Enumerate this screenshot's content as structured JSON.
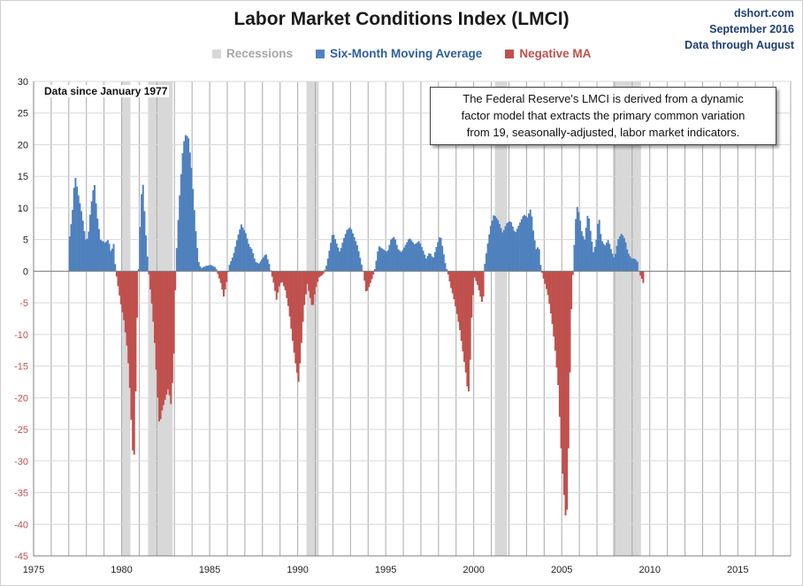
{
  "title": "Labor Market Conditions Index  (LMCI)",
  "source": {
    "site": "dshort.com",
    "date": "September 2016",
    "through": "Data through August"
  },
  "legend": {
    "recessions": "Recessions",
    "moving_average": "Six-Month Moving Average",
    "negative": "Negative MA"
  },
  "colors": {
    "recession": "#d8d8d8",
    "positive": "#4f81bd",
    "negative": "#c0504d",
    "legend_recession_text": "#a6a6a6",
    "legend_ma_text": "#2f5f9e",
    "legend_neg_text": "#c0504d"
  },
  "annotations": {
    "data_since": "Data since January 1977",
    "note_line1": "The Federal Reserve's LMCI is derived from a dynamic",
    "note_line2": "factor model that extracts the primary common variation",
    "note_line3": "from 19, seasonally-adjusted, labor market indicators."
  },
  "chart_data": {
    "type": "bar",
    "title": "Labor Market Conditions Index  (LMCI)",
    "series_name": "Six-Month Moving Average",
    "xlim": [
      1975,
      2018
    ],
    "ylim": [
      -45,
      30
    ],
    "yticks": [
      30,
      25,
      20,
      15,
      10,
      5,
      0,
      -5,
      -10,
      -15,
      -20,
      -25,
      -30,
      -35,
      -40,
      -45
    ],
    "xticks": [
      1975,
      1980,
      1985,
      1990,
      1995,
      2000,
      2005,
      2010,
      2015
    ],
    "recessions": [
      [
        1980.0,
        1980.5
      ],
      [
        1981.5,
        1982.9
      ],
      [
        1990.5,
        1991.2
      ],
      [
        2001.2,
        2001.9
      ],
      [
        2007.9,
        2009.5
      ]
    ],
    "keypoints": [
      [
        1977.0,
        5.5
      ],
      [
        1977.15,
        9
      ],
      [
        1977.3,
        15.3
      ],
      [
        1977.5,
        12
      ],
      [
        1977.7,
        9
      ],
      [
        1977.9,
        5
      ],
      [
        1978.05,
        5.2
      ],
      [
        1978.2,
        10
      ],
      [
        1978.4,
        14.2
      ],
      [
        1978.55,
        9
      ],
      [
        1978.75,
        5
      ],
      [
        1979.0,
        4.5
      ],
      [
        1979.2,
        5
      ],
      [
        1979.35,
        3
      ],
      [
        1979.5,
        4.3
      ],
      [
        1979.6,
        0.5
      ],
      [
        1979.7,
        -1.5
      ],
      [
        1979.9,
        -5
      ],
      [
        1980.1,
        -8
      ],
      [
        1980.3,
        -13
      ],
      [
        1980.45,
        -20
      ],
      [
        1980.55,
        -27
      ],
      [
        1980.65,
        -31
      ],
      [
        1980.75,
        -19
      ],
      [
        1980.85,
        -5
      ],
      [
        1980.95,
        3
      ],
      [
        1981.05,
        11
      ],
      [
        1981.15,
        14.5
      ],
      [
        1981.3,
        7
      ],
      [
        1981.45,
        1
      ],
      [
        1981.55,
        -2
      ],
      [
        1981.7,
        -6
      ],
      [
        1981.85,
        -12
      ],
      [
        1982.0,
        -20
      ],
      [
        1982.1,
        -24.5
      ],
      [
        1982.25,
        -22
      ],
      [
        1982.45,
        -20
      ],
      [
        1982.6,
        -18.5
      ],
      [
        1982.75,
        -21
      ],
      [
        1982.9,
        -15
      ],
      [
        1983.0,
        -3
      ],
      [
        1983.1,
        5
      ],
      [
        1983.25,
        12
      ],
      [
        1983.45,
        20
      ],
      [
        1983.6,
        21.7
      ],
      [
        1983.75,
        21
      ],
      [
        1983.9,
        17
      ],
      [
        1984.05,
        11
      ],
      [
        1984.2,
        5
      ],
      [
        1984.35,
        1
      ],
      [
        1984.5,
        0.5
      ],
      [
        1984.7,
        0.8
      ],
      [
        1985.0,
        1
      ],
      [
        1985.3,
        0.6
      ],
      [
        1985.4,
        -0.3
      ],
      [
        1985.6,
        -2
      ],
      [
        1985.75,
        -4
      ],
      [
        1985.9,
        -2
      ],
      [
        1986.05,
        0.8
      ],
      [
        1986.3,
        2.5
      ],
      [
        1986.55,
        5.5
      ],
      [
        1986.75,
        7.4
      ],
      [
        1987.0,
        6
      ],
      [
        1987.2,
        4
      ],
      [
        1987.35,
        3.5
      ],
      [
        1987.55,
        1.5
      ],
      [
        1987.75,
        1.2
      ],
      [
        1987.95,
        2
      ],
      [
        1988.15,
        2.8
      ],
      [
        1988.35,
        1
      ],
      [
        1988.45,
        -0.3
      ],
      [
        1988.6,
        -2
      ],
      [
        1988.75,
        -4.5
      ],
      [
        1988.9,
        -2.5
      ],
      [
        1989.05,
        -1.5
      ],
      [
        1989.25,
        -3
      ],
      [
        1989.45,
        -6
      ],
      [
        1989.6,
        -9.5
      ],
      [
        1989.8,
        -14
      ],
      [
        1990.0,
        -17.5
      ],
      [
        1990.1,
        -14
      ],
      [
        1990.3,
        -6
      ],
      [
        1990.5,
        -2
      ],
      [
        1990.65,
        -4
      ],
      [
        1990.8,
        -6
      ],
      [
        1990.95,
        -3
      ],
      [
        1991.15,
        -1
      ],
      [
        1991.4,
        -0.5
      ],
      [
        1991.6,
        1
      ],
      [
        1991.8,
        4
      ],
      [
        1991.95,
        6.2
      ],
      [
        1992.15,
        4.5
      ],
      [
        1992.35,
        3
      ],
      [
        1992.55,
        5
      ],
      [
        1992.75,
        6.5
      ],
      [
        1992.95,
        7
      ],
      [
        1993.15,
        5.5
      ],
      [
        1993.35,
        4
      ],
      [
        1993.55,
        1.5
      ],
      [
        1993.7,
        -0.5
      ],
      [
        1993.85,
        -3.5
      ],
      [
        1994.0,
        -2.5
      ],
      [
        1994.2,
        -1
      ],
      [
        1994.35,
        0.5
      ],
      [
        1994.55,
        4
      ],
      [
        1994.8,
        3.5
      ],
      [
        1995.05,
        3
      ],
      [
        1995.25,
        5
      ],
      [
        1995.45,
        5.5
      ],
      [
        1995.65,
        3.5
      ],
      [
        1995.85,
        3
      ],
      [
        1996.05,
        4
      ],
      [
        1996.3,
        5.3
      ],
      [
        1996.6,
        4.2
      ],
      [
        1996.85,
        4.8
      ],
      [
        1997.05,
        3.5
      ],
      [
        1997.25,
        2
      ],
      [
        1997.45,
        3
      ],
      [
        1997.65,
        2
      ],
      [
        1997.85,
        4
      ],
      [
        1998.05,
        5.8
      ],
      [
        1998.2,
        3.5
      ],
      [
        1998.35,
        1
      ],
      [
        1998.5,
        -0.5
      ],
      [
        1998.65,
        -2.5
      ],
      [
        1998.8,
        -4
      ],
      [
        1998.95,
        -6
      ],
      [
        1999.15,
        -9
      ],
      [
        1999.3,
        -12
      ],
      [
        1999.5,
        -16
      ],
      [
        1999.65,
        -20
      ],
      [
        1999.75,
        -14
      ],
      [
        1999.85,
        -6
      ],
      [
        2000.0,
        -1
      ],
      [
        2000.15,
        -2
      ],
      [
        2000.3,
        -3.5
      ],
      [
        2000.4,
        -5
      ],
      [
        2000.5,
        -4
      ],
      [
        2000.55,
        0.5
      ],
      [
        2000.7,
        3.5
      ],
      [
        2000.9,
        7
      ],
      [
        2001.1,
        9
      ],
      [
        2001.35,
        8
      ],
      [
        2001.6,
        6
      ],
      [
        2001.8,
        7.5
      ],
      [
        2002.05,
        8
      ],
      [
        2002.3,
        6
      ],
      [
        2002.55,
        7.5
      ],
      [
        2002.8,
        9
      ],
      [
        2003.0,
        8.5
      ],
      [
        2003.2,
        10
      ],
      [
        2003.35,
        6
      ],
      [
        2003.5,
        3.5
      ],
      [
        2003.65,
        4
      ],
      [
        2003.75,
        1
      ],
      [
        2003.85,
        -0.5
      ],
      [
        2004.0,
        -2
      ],
      [
        2004.15,
        -3.5
      ],
      [
        2004.3,
        -6
      ],
      [
        2004.45,
        -9
      ],
      [
        2004.6,
        -13
      ],
      [
        2004.75,
        -18
      ],
      [
        2004.85,
        -24
      ],
      [
        2004.95,
        -30
      ],
      [
        2005.05,
        -34
      ],
      [
        2005.15,
        -38
      ],
      [
        2005.22,
        -40.5
      ],
      [
        2005.3,
        -33
      ],
      [
        2005.4,
        -18
      ],
      [
        2005.5,
        -6
      ],
      [
        2005.6,
        0.5
      ],
      [
        2005.7,
        6
      ],
      [
        2005.8,
        10.5
      ],
      [
        2005.95,
        9
      ],
      [
        2006.1,
        6
      ],
      [
        2006.25,
        5
      ],
      [
        2006.45,
        9.5
      ],
      [
        2006.6,
        6
      ],
      [
        2006.75,
        3
      ],
      [
        2006.9,
        4.5
      ],
      [
        2007.05,
        9
      ],
      [
        2007.2,
        5
      ],
      [
        2007.4,
        4
      ],
      [
        2007.6,
        5
      ],
      [
        2007.8,
        3
      ],
      [
        2007.95,
        2
      ],
      [
        2008.15,
        5
      ],
      [
        2008.35,
        6
      ],
      [
        2008.55,
        5
      ],
      [
        2008.7,
        3
      ],
      [
        2008.9,
        2
      ],
      [
        2009.1,
        2
      ],
      [
        2009.25,
        1.5
      ],
      [
        2009.35,
        -0.3
      ],
      [
        2009.5,
        -1.2
      ],
      [
        2009.6,
        -2
      ]
    ]
  }
}
